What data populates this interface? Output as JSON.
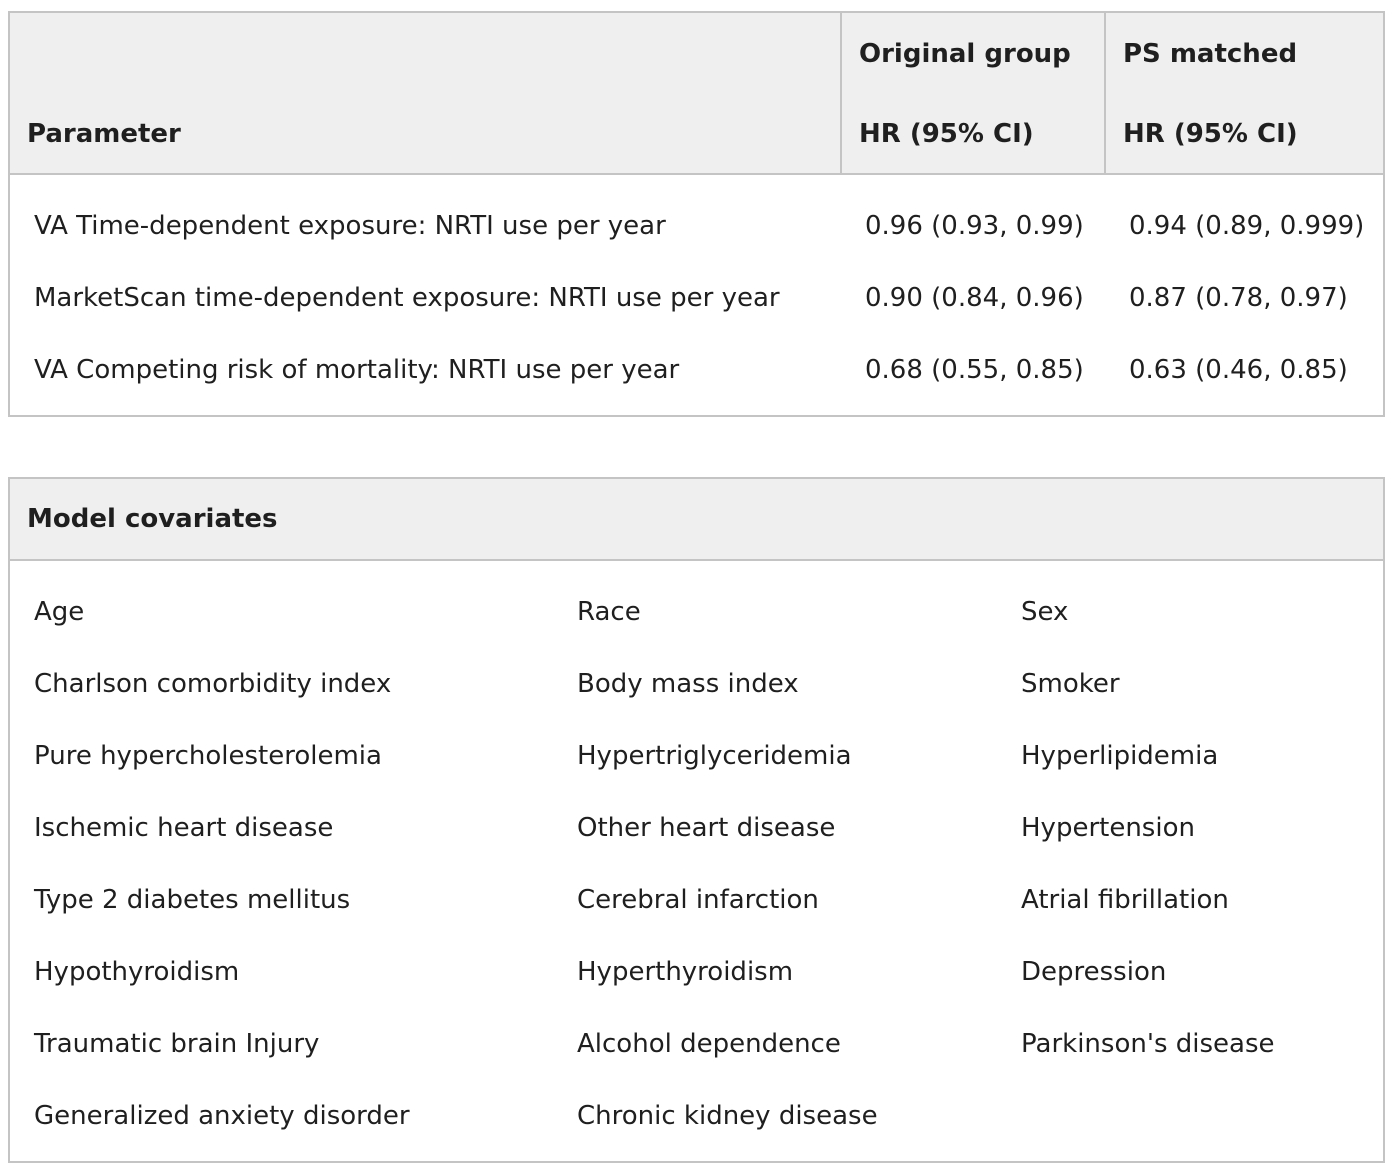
{
  "hr_table": {
    "headers": {
      "parameter": "Parameter",
      "original_line1": "Original group",
      "original_line2": "HR (95% CI)",
      "ps_line1": "PS matched",
      "ps_line2": "HR (95% CI)"
    },
    "rows": [
      {
        "parameter": "VA Time-dependent exposure: NRTI use per year",
        "original": "0.96 (0.93, 0.99)",
        "ps_matched": "0.94 (0.89, 0.999)"
      },
      {
        "parameter": "MarketScan time-dependent exposure: NRTI use per year",
        "original": "0.90 (0.84, 0.96)",
        "ps_matched": "0.87 (0.78, 0.97)"
      },
      {
        "parameter": "VA Competing risk of mortality: NRTI use per year",
        "original": "0.68 (0.55, 0.85)",
        "ps_matched": "0.63 (0.46, 0.85)"
      }
    ]
  },
  "covariates_table": {
    "header": "Model covariates",
    "rows": [
      [
        "Age",
        "Race",
        "Sex"
      ],
      [
        "Charlson comorbidity index",
        "Body mass index",
        "Smoker"
      ],
      [
        "Pure hypercholesterolemia",
        "Hypertriglyceridemia",
        "Hyperlipidemia"
      ],
      [
        "Ischemic heart disease",
        "Other heart disease",
        "Hypertension"
      ],
      [
        "Type 2 diabetes mellitus",
        "Cerebral infarction",
        "Atrial fibrillation"
      ],
      [
        "Hypothyroidism",
        "Hyperthyroidism",
        "Depression"
      ],
      [
        "Traumatic brain Injury",
        "Alcohol dependence",
        "Parkinson's disease"
      ],
      [
        "Generalized anxiety disorder",
        "Chronic kidney disease",
        ""
      ]
    ]
  }
}
